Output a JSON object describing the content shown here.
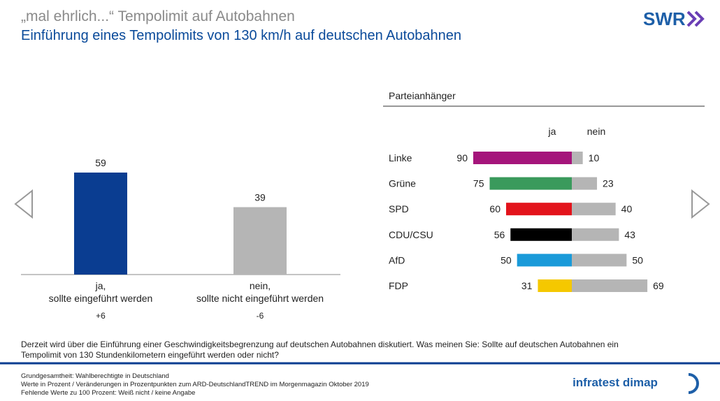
{
  "header": {
    "title": "„mal ehrlich...“ Tempolimit auf Autobahnen",
    "subtitle": "Einführung eines Tempolimits von 130 km/h auf deutschen Autobahnen",
    "logo": "SWR"
  },
  "chart_data": [
    {
      "type": "bar",
      "categories": [
        [
          "ja,",
          "sollte eingeführt werden"
        ],
        [
          "nein,",
          "sollte nicht eingeführt werden"
        ]
      ],
      "values": [
        59,
        39
      ],
      "colors": [
        "#0a3d91",
        "#b5b5b5"
      ],
      "changes": {
        "values": [
          6,
          -6
        ],
        "value_labels": [
          "+6",
          "-6"
        ]
      }
    },
    {
      "type": "diverging-bar",
      "title": "Parteianhänger",
      "categories": [
        "Linke",
        "Grüne",
        "SPD",
        "CDU/CSU",
        "AfD",
        "FDP"
      ],
      "series": [
        {
          "name": "ja",
          "colors": [
            "#a5157b",
            "#3a9a5c",
            "#e3131b",
            "#000000",
            "#1a9ad9",
            "#f5c800"
          ],
          "values": [
            90,
            75,
            60,
            56,
            50,
            31
          ]
        },
        {
          "name": "nein",
          "color": "#b5b5b5",
          "values": [
            10,
            23,
            40,
            43,
            50,
            69
          ]
        }
      ]
    }
  ],
  "question": [
    "Derzeit wird über die Einführung einer Geschwindigkeitsbegrenzung auf deutschen Autobahnen diskutiert. Was meinen Sie: Sollte auf deutschen Autobahnen ein",
    "Tempolimit von 130 Stundenkilometern eingeführt werden oder nicht?"
  ],
  "footnotes": [
    "Grundgesamtheit: Wahlberechtigte in Deutschland",
    "Werte in Prozent / Veränderungen in Prozentpunkten zum ARD-DeutschlandTREND im Morgenmagazin Oktober 2019",
    "Fehlende Werte zu 100 Prozent: Weiß nicht / keine Angabe"
  ],
  "footer_logo": "infratest dimap"
}
